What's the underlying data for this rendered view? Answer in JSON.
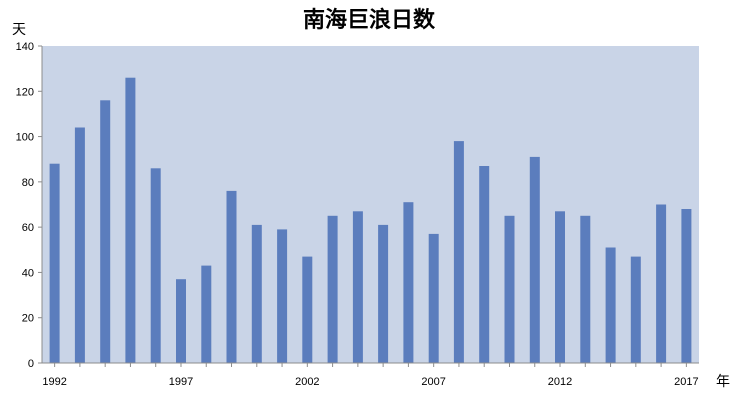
{
  "chart_data": {
    "type": "bar",
    "title": "南海巨浪日数",
    "ylabel": "天",
    "xlabel": "年",
    "ylim": [
      0,
      140
    ],
    "yticks": [
      0,
      20,
      40,
      60,
      80,
      100,
      120,
      140
    ],
    "categories": [
      "1992",
      "1993",
      "1994",
      "1995",
      "1996",
      "1997",
      "1998",
      "1999",
      "2000",
      "2001",
      "2002",
      "2003",
      "2004",
      "2005",
      "2006",
      "2007",
      "2008",
      "2009",
      "2010",
      "2011",
      "2012",
      "2013",
      "2014",
      "2015",
      "2016",
      "2017"
    ],
    "xtick_labels": [
      "1992",
      "1997",
      "2002",
      "2007",
      "2012",
      "2017"
    ],
    "values": [
      88,
      104,
      116,
      126,
      86,
      37,
      43,
      76,
      61,
      59,
      47,
      65,
      67,
      61,
      71,
      57,
      98,
      87,
      65,
      91,
      67,
      65,
      51,
      47,
      70,
      68
    ],
    "grid": false,
    "colors": {
      "bar": "#5b7dbd",
      "plot_background": "#c9d4e7",
      "axis": "#8c8c8c"
    }
  }
}
